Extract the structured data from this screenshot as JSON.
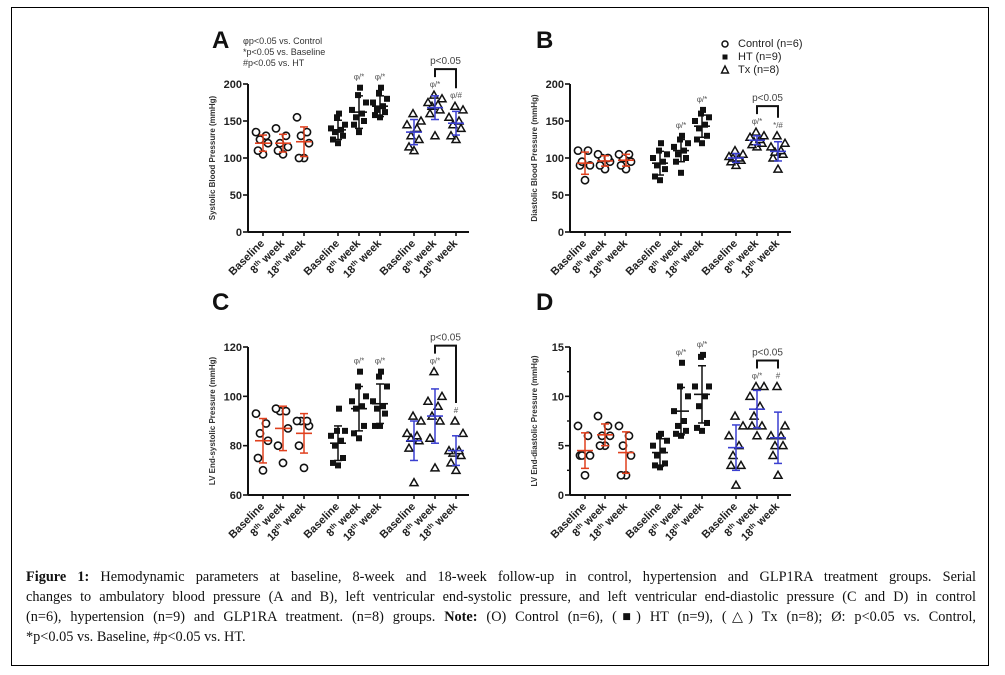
{
  "figure": {
    "caption_label": "Figure 1:",
    "caption_lines": [
      " Hemodynamic parameters at baseline, 8-week and 18-week follow-up in control, hypertension and GLP1RA treatment groups. Serial",
      "changes to ambulatory blood pressure (A and B), left ventricular end-systolic pressure, and left ventricular end-diastolic pressure (C and D) in control",
      "(n=6), hypertension (n=9) and GLP1RA treatment. (n=8) groups. "
    ],
    "note_label": "Note:",
    "note_text": " (O) Control (n=6), (■) HT (n=9), (△) Tx (n=8); Ø: p<0.05 vs. Control,",
    "last_line": "*p<0.05 vs. Baseline, #p<0.05 vs. HT."
  },
  "chart_data": [
    {
      "panel": "A",
      "type": "scatter",
      "ylabel": "Systolic Blood Pressure (mmHg)",
      "ylim": [
        0,
        200
      ],
      "yticks": [
        0,
        50,
        100,
        150,
        200
      ],
      "minor_ticks": false,
      "categories": [
        "Baseline",
        "8th week",
        "18th week",
        "Baseline",
        "8th week",
        "18th week",
        "Baseline",
        "8th week",
        "18th week"
      ],
      "annotation_lines": [
        "φp<0.05 vs. Control",
        "*p<0.05 vs. Baseline",
        "#p<0.05 vs. HT"
      ],
      "bracket": {
        "from": 7,
        "to": 8,
        "label": "p<0.05"
      },
      "sig_labels": [
        {
          "index": 4,
          "text": "φ/*"
        },
        {
          "index": 5,
          "text": "φ/*"
        },
        {
          "index": 7,
          "text": "φ/*"
        },
        {
          "index": 8,
          "text": "φ/#"
        }
      ],
      "groups": [
        {
          "name": "Control",
          "color": "#e0401e",
          "marker": "circle",
          "series": [
            {
              "values": [
                105,
                110,
                120,
                125,
                130,
                135
              ],
              "mean": 120,
              "sd": 11
            },
            {
              "values": [
                105,
                110,
                115,
                120,
                130,
                140
              ],
              "mean": 120,
              "sd": 12
            },
            {
              "values": [
                100,
                100,
                120,
                130,
                135,
                155
              ],
              "mean": 122,
              "sd": 20
            }
          ]
        },
        {
          "name": "HT",
          "color": "#111111",
          "marker": "square",
          "series": [
            {
              "values": [
                120,
                125,
                130,
                135,
                138,
                140,
                145,
                155,
                160
              ],
              "mean": 138,
              "sd": 13
            },
            {
              "values": [
                135,
                145,
                150,
                155,
                160,
                165,
                175,
                185,
                195
              ],
              "mean": 162,
              "sd": 22
            },
            {
              "values": [
                155,
                158,
                162,
                165,
                170,
                175,
                180,
                188,
                195
              ],
              "mean": 170,
              "sd": 14
            }
          ]
        },
        {
          "name": "Tx",
          "color": "#3a3fd0",
          "marker": "triangle",
          "series": [
            {
              "values": [
                110,
                115,
                125,
                130,
                140,
                145,
                150,
                160
              ],
              "mean": 135,
              "sd": 17
            },
            {
              "values": [
                130,
                160,
                165,
                170,
                172,
                175,
                180,
                185
              ],
              "mean": 168,
              "sd": 16
            },
            {
              "values": [
                125,
                130,
                140,
                145,
                150,
                155,
                165,
                170
              ],
              "mean": 147,
              "sd": 16
            }
          ]
        }
      ]
    },
    {
      "panel": "B",
      "type": "scatter",
      "ylabel": "Diastolic Blood Pressure (mmHg)",
      "ylim": [
        0,
        200
      ],
      "yticks": [
        0,
        50,
        100,
        150,
        200
      ],
      "minor_ticks": false,
      "categories": [
        "Baseline",
        "8th week",
        "18th week",
        "Baseline",
        "8th week",
        "18th week",
        "Baseline",
        "8th week",
        "18th week"
      ],
      "legend": [
        {
          "marker": "circle",
          "label": "Control (n=6)"
        },
        {
          "marker": "square",
          "label": "HT (n=9)"
        },
        {
          "marker": "triangle",
          "label": "Tx (n=8)"
        }
      ],
      "legend_position": "top-right",
      "bracket": {
        "from": 7,
        "to": 8,
        "label": "p<0.05"
      },
      "sig_labels": [
        {
          "index": 4,
          "text": "φ/*"
        },
        {
          "index": 5,
          "text": "φ/*"
        },
        {
          "index": 7,
          "text": "φ/*"
        },
        {
          "index": 8,
          "text": "*/#"
        }
      ],
      "groups": [
        {
          "name": "Control",
          "color": "#e0401e",
          "marker": "circle",
          "series": [
            {
              "values": [
                70,
                90,
                90,
                95,
                110,
                110
              ],
              "mean": 93,
              "sd": 15
            },
            {
              "values": [
                85,
                90,
                95,
                100,
                100,
                105
              ],
              "mean": 96,
              "sd": 7
            },
            {
              "values": [
                85,
                90,
                95,
                100,
                105,
                105
              ],
              "mean": 97,
              "sd": 8
            }
          ]
        },
        {
          "name": "HT",
          "color": "#111111",
          "marker": "square",
          "series": [
            {
              "values": [
                70,
                75,
                85,
                90,
                95,
                100,
                105,
                110,
                120
              ],
              "mean": 93,
              "sd": 16
            },
            {
              "values": [
                80,
                95,
                100,
                105,
                110,
                115,
                120,
                125,
                130
              ],
              "mean": 110,
              "sd": 15
            },
            {
              "values": [
                120,
                125,
                130,
                140,
                145,
                150,
                155,
                160,
                165
              ],
              "mean": 143,
              "sd": 15
            }
          ]
        },
        {
          "name": "Tx",
          "color": "#3a3fd0",
          "marker": "triangle",
          "series": [
            {
              "values": [
                90,
                95,
                97,
                100,
                100,
                102,
                105,
                110
              ],
              "mean": 100,
              "sd": 6
            },
            {
              "values": [
                115,
                118,
                120,
                122,
                125,
                128,
                130,
                135
              ],
              "mean": 124,
              "sd": 6
            },
            {
              "values": [
                85,
                100,
                105,
                108,
                110,
                115,
                120,
                130
              ],
              "mean": 109,
              "sd": 13
            }
          ]
        }
      ]
    },
    {
      "panel": "C",
      "type": "scatter",
      "ylabel": "LV End-systolic Pressure (mmHg)",
      "ylim": [
        60,
        120
      ],
      "yticks": [
        60,
        80,
        100,
        120
      ],
      "minor_ticks": false,
      "categories": [
        "Baseline",
        "8th week",
        "18th week",
        "Baseline",
        "8th week",
        "18th week",
        "Baseline",
        "8th week",
        "18th week"
      ],
      "bracket": {
        "from": 7,
        "to": 8,
        "label": "p<0.05"
      },
      "sig_labels": [
        {
          "index": 4,
          "text": "φ/*"
        },
        {
          "index": 5,
          "text": "φ/*"
        },
        {
          "index": 7,
          "text": "φ/*"
        },
        {
          "index": 8,
          "text": "#"
        }
      ],
      "groups": [
        {
          "name": "Control",
          "color": "#e0401e",
          "marker": "circle",
          "series": [
            {
              "values": [
                70,
                75,
                82,
                85,
                89,
                93
              ],
              "mean": 82,
              "sd": 9
            },
            {
              "values": [
                73,
                80,
                87,
                94,
                94,
                95
              ],
              "mean": 87,
              "sd": 9
            },
            {
              "values": [
                71,
                80,
                88,
                90,
                90,
                90
              ],
              "mean": 85,
              "sd": 8
            }
          ]
        },
        {
          "name": "HT",
          "color": "#111111",
          "marker": "square",
          "series": [
            {
              "values": [
                72,
                73,
                75,
                80,
                82,
                84,
                86,
                86,
                95
              ],
              "mean": 81,
              "sd": 7
            },
            {
              "values": [
                83,
                85,
                88,
                95,
                96,
                98,
                100,
                104,
                110
              ],
              "mean": 95,
              "sd": 9
            },
            {
              "values": [
                88,
                88,
                93,
                95,
                96,
                98,
                104,
                108,
                110
              ],
              "mean": 97,
              "sd": 8
            }
          ]
        },
        {
          "name": "Tx",
          "color": "#3a3fd0",
          "marker": "triangle",
          "series": [
            {
              "values": [
                65,
                79,
                82,
                83,
                84,
                85,
                90,
                92
              ],
              "mean": 82,
              "sd": 8
            },
            {
              "values": [
                71,
                83,
                90,
                92,
                96,
                98,
                100,
                110
              ],
              "mean": 92,
              "sd": 11
            },
            {
              "values": [
                70,
                73,
                76,
                77,
                78,
                78,
                85,
                90
              ],
              "mean": 78,
              "sd": 6
            }
          ]
        }
      ]
    },
    {
      "panel": "D",
      "type": "scatter",
      "ylabel": "LV End-diastolic Pressure (mmHg)",
      "ylim": [
        0,
        15
      ],
      "yticks": [
        0,
        5,
        10,
        15
      ],
      "minor_ticks": true,
      "categories": [
        "Baseline",
        "8th week",
        "18th week",
        "Baseline",
        "8th week",
        "18th week",
        "Baseline",
        "8th week",
        "18th week"
      ],
      "bracket": {
        "from": 7,
        "to": 8,
        "label": "p<0.05"
      },
      "sig_labels": [
        {
          "index": 4,
          "text": "φ/*"
        },
        {
          "index": 5,
          "text": "φ/*"
        },
        {
          "index": 7,
          "text": "φ/*"
        },
        {
          "index": 8,
          "text": "#"
        }
      ],
      "groups": [
        {
          "name": "Control",
          "color": "#e0401e",
          "marker": "circle",
          "series": [
            {
              "values": [
                2,
                4,
                4,
                4,
                6,
                7
              ],
              "mean": 4.5,
              "sd": 1.8
            },
            {
              "values": [
                5,
                5,
                6,
                6,
                7,
                8
              ],
              "mean": 6.1,
              "sd": 1.1
            },
            {
              "values": [
                2,
                2,
                4,
                5,
                6,
                7
              ],
              "mean": 4.3,
              "sd": 2.1
            }
          ]
        },
        {
          "name": "HT",
          "color": "#111111",
          "marker": "square",
          "series": [
            {
              "values": [
                2.8,
                3,
                3.2,
                4,
                4.5,
                5,
                5.5,
                6,
                6.2
              ],
              "mean": 4.3,
              "sd": 1.4
            },
            {
              "values": [
                6,
                6.2,
                6.5,
                7,
                7.5,
                8.5,
                10,
                11,
                13.4
              ],
              "mean": 8.5,
              "sd": 2.4
            },
            {
              "values": [
                6.5,
                6.8,
                7.3,
                9,
                10,
                11,
                11,
                14,
                14.2
              ],
              "mean": 10.2,
              "sd": 2.9
            }
          ]
        },
        {
          "name": "Tx",
          "color": "#3a3fd0",
          "marker": "triangle",
          "series": [
            {
              "values": [
                1,
                3,
                3,
                4,
                5,
                6,
                7,
                8
              ],
              "mean": 4.8,
              "sd": 2.3
            },
            {
              "values": [
                6,
                7,
                7,
                8,
                9,
                10,
                11,
                11
              ],
              "mean": 8.7,
              "sd": 1.9
            },
            {
              "values": [
                2,
                4,
                5,
                5,
                6,
                6,
                7,
                11
              ],
              "mean": 5.8,
              "sd": 2.6
            }
          ]
        }
      ]
    }
  ]
}
